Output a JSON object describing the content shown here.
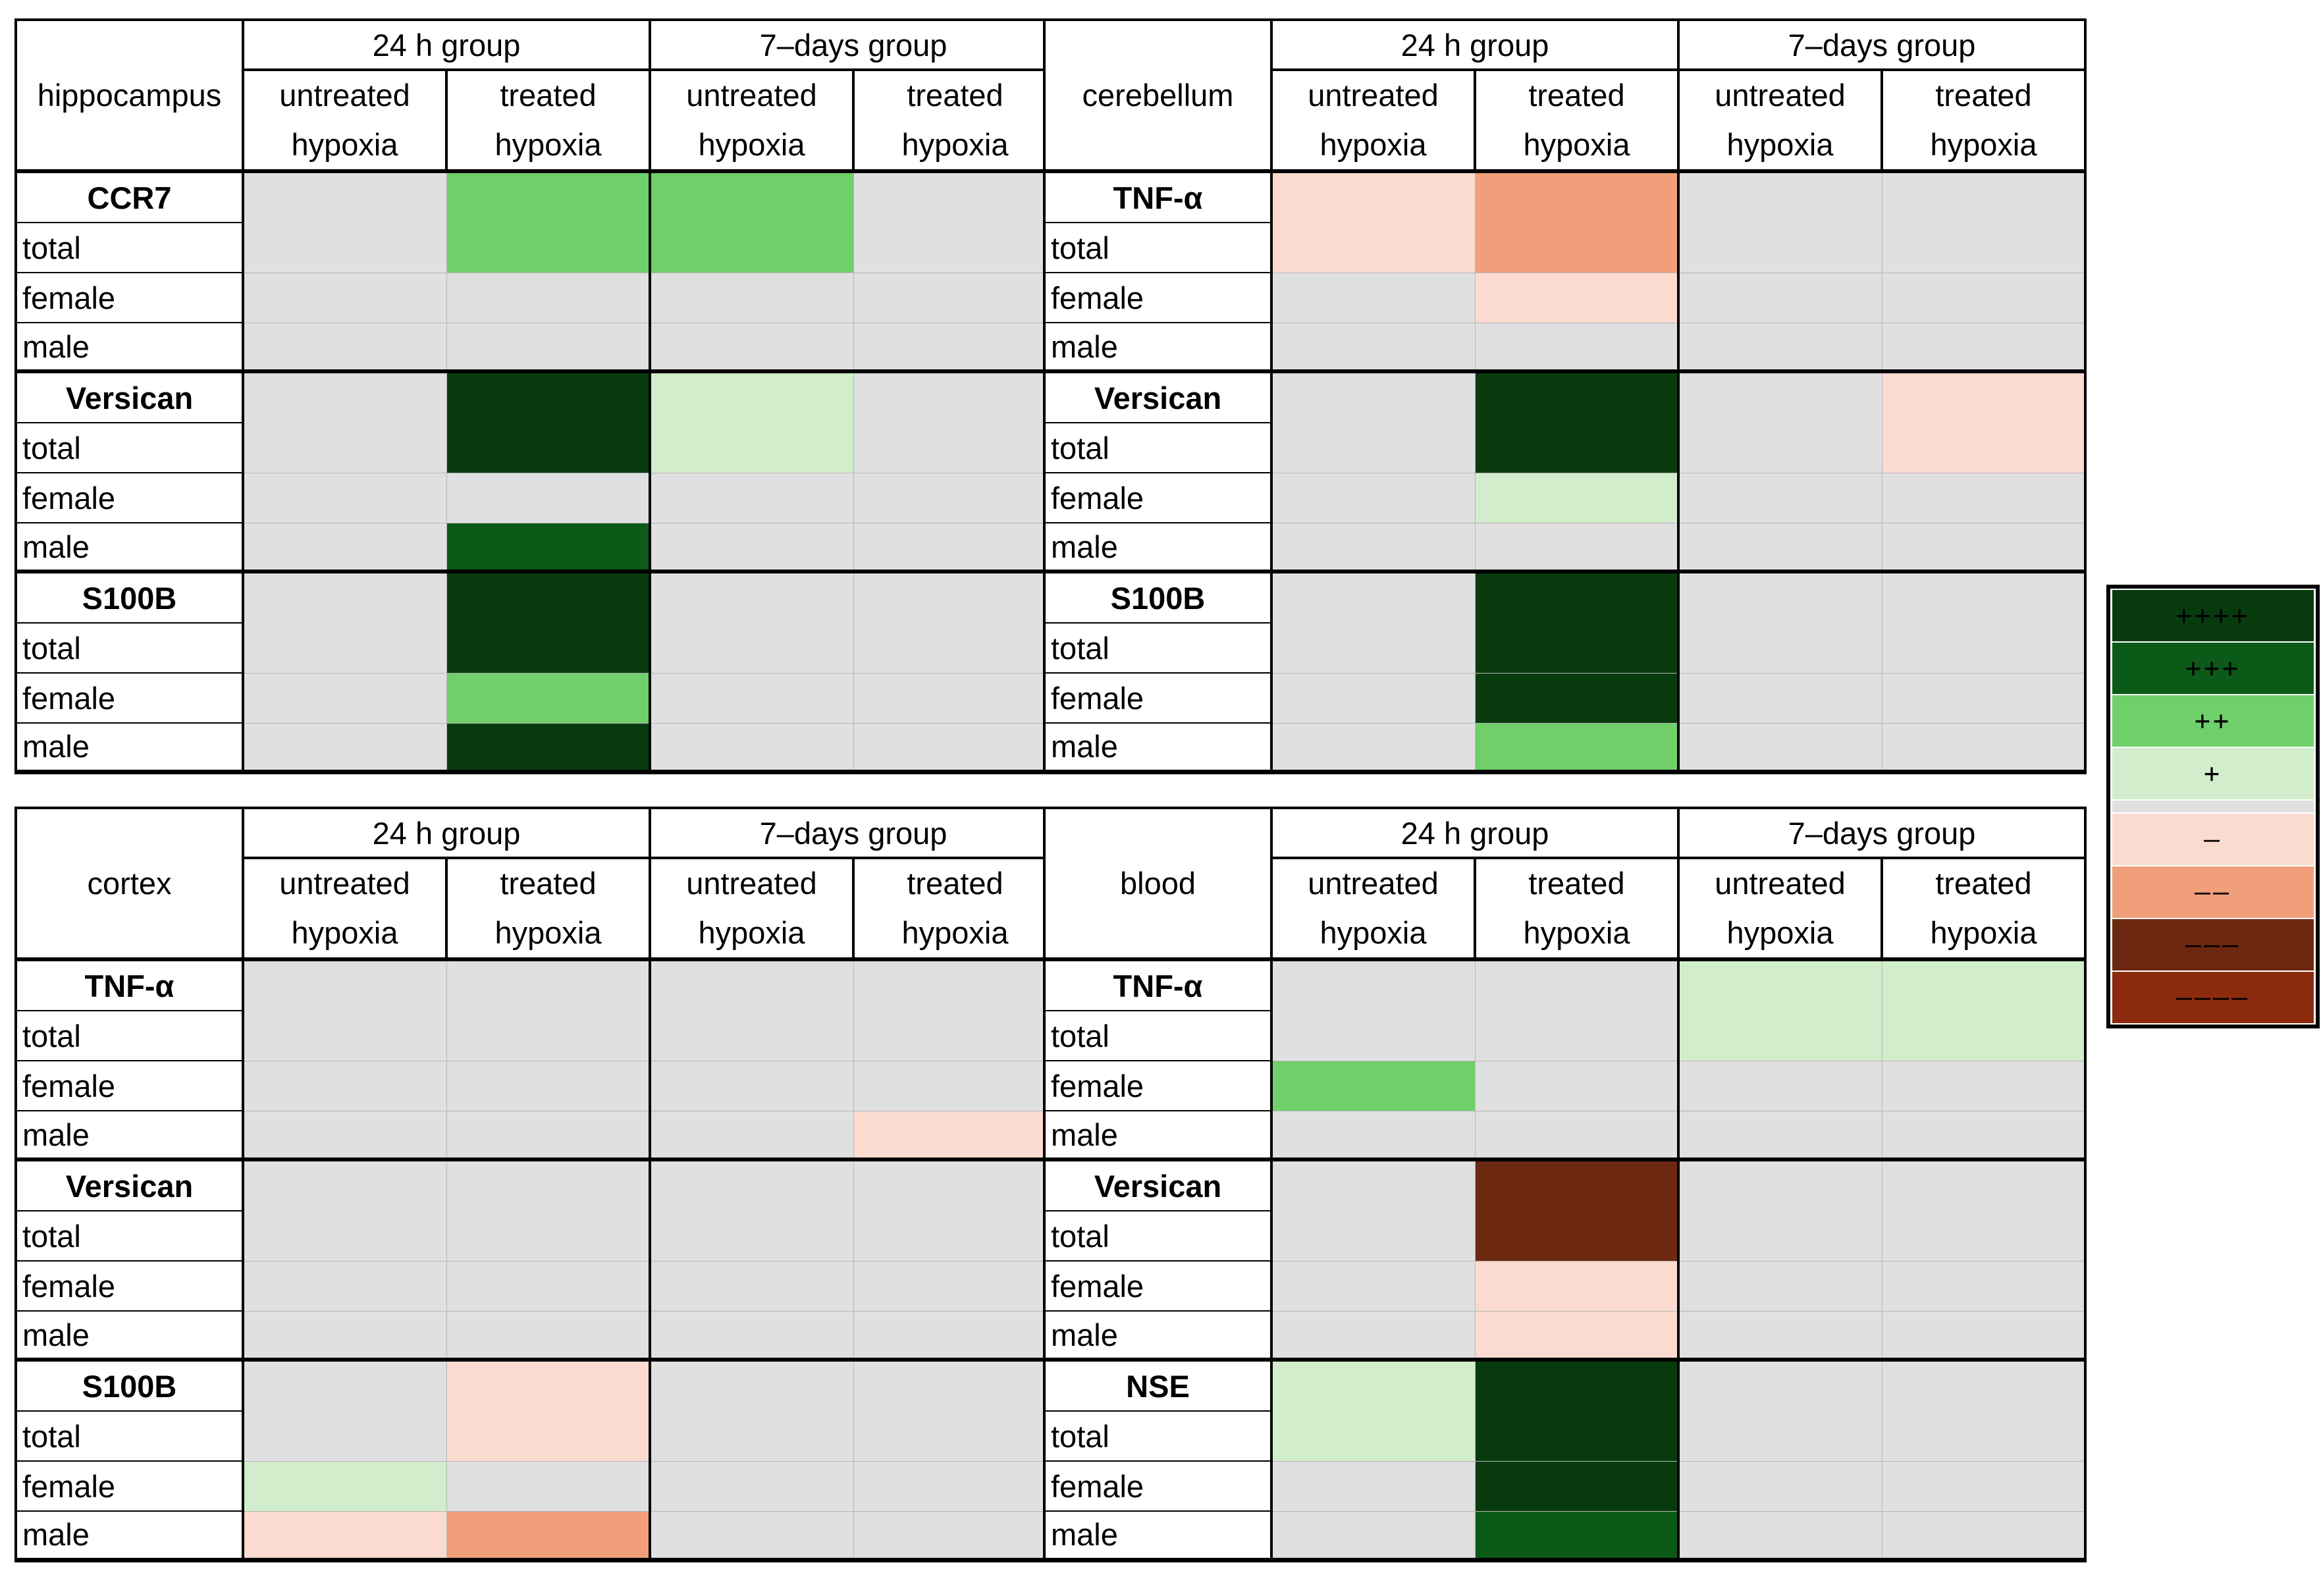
{
  "header": {
    "group_24h": "24 h group",
    "group_7d": "7–days group",
    "untreated": "untreated",
    "treated": "treated",
    "hypoxia": "hypoxia"
  },
  "row_labels": {
    "total": "total",
    "female": "female",
    "male": "male"
  },
  "scale": {
    "4": "#073b0e",
    "3": "#0b5a17",
    "2": "#6fd06a",
    "1": "#d2edcb",
    "0": "#e0e0e0",
    "-1": "#fbdbd0",
    "-2": "#f09f7a",
    "-3": "#6c2810",
    "-4": "#8c2a0e"
  },
  "legend": [
    {
      "symbol": "++++",
      "level": 4
    },
    {
      "symbol": "+++",
      "level": 3
    },
    {
      "symbol": "++",
      "level": 2
    },
    {
      "symbol": "+",
      "level": 1
    },
    {
      "symbol": "",
      "level": 0
    },
    {
      "symbol": "–",
      "level": -1
    },
    {
      "symbol": "––",
      "level": -2
    },
    {
      "symbol": "–––",
      "level": -3
    },
    {
      "symbol": "––––",
      "level": -4
    }
  ],
  "chart_data": {
    "type": "heatmap",
    "columns": [
      "24 h untreated hypoxia",
      "24 h treated hypoxia",
      "7-days untreated hypoxia",
      "7-days treated hypoxia"
    ],
    "panels": [
      {
        "region": "hippocampus",
        "markers": [
          {
            "name": "CCR7",
            "total": [
              0,
              2,
              2,
              0
            ],
            "female": [
              0,
              0,
              0,
              0
            ],
            "male": [
              0,
              0,
              0,
              0
            ]
          },
          {
            "name": "Versican",
            "total": [
              0,
              4,
              1,
              0
            ],
            "female": [
              0,
              0,
              0,
              0
            ],
            "male": [
              0,
              3,
              0,
              0
            ]
          },
          {
            "name": "S100B",
            "total": [
              0,
              4,
              0,
              0
            ],
            "female": [
              0,
              2,
              0,
              0
            ],
            "male": [
              0,
              4,
              0,
              0
            ]
          }
        ]
      },
      {
        "region": "cerebellum",
        "markers": [
          {
            "name": "TNF-α",
            "total": [
              -1,
              -2,
              0,
              0
            ],
            "female": [
              0,
              -1,
              0,
              0
            ],
            "male": [
              0,
              0,
              0,
              0
            ]
          },
          {
            "name": "Versican",
            "total": [
              0,
              4,
              0,
              -1
            ],
            "female": [
              0,
              1,
              0,
              0
            ],
            "male": [
              0,
              0,
              0,
              0
            ]
          },
          {
            "name": "S100B",
            "total": [
              0,
              4,
              0,
              0
            ],
            "female": [
              0,
              4,
              0,
              0
            ],
            "male": [
              0,
              2,
              0,
              0
            ]
          }
        ]
      },
      {
        "region": "cortex",
        "markers": [
          {
            "name": "TNF-α",
            "total": [
              0,
              0,
              0,
              0
            ],
            "female": [
              0,
              0,
              0,
              0
            ],
            "male": [
              0,
              0,
              0,
              -1
            ]
          },
          {
            "name": "Versican",
            "total": [
              0,
              0,
              0,
              0
            ],
            "female": [
              0,
              0,
              0,
              0
            ],
            "male": [
              0,
              0,
              0,
              0
            ]
          },
          {
            "name": "S100B",
            "total": [
              0,
              -1,
              0,
              0
            ],
            "female": [
              1,
              0,
              0,
              0
            ],
            "male": [
              -1,
              -2,
              0,
              0
            ]
          }
        ]
      },
      {
        "region": "blood",
        "markers": [
          {
            "name": "TNF-α",
            "total": [
              0,
              0,
              1,
              1
            ],
            "female": [
              2,
              0,
              0,
              0
            ],
            "male": [
              0,
              0,
              0,
              0
            ]
          },
          {
            "name": "Versican",
            "total": [
              0,
              -3,
              0,
              0
            ],
            "female": [
              0,
              -1,
              0,
              0
            ],
            "male": [
              0,
              -1,
              0,
              0
            ]
          },
          {
            "name": "NSE",
            "total": [
              1,
              4,
              0,
              0
            ],
            "female": [
              0,
              4,
              0,
              0
            ],
            "male": [
              0,
              3,
              0,
              0
            ]
          }
        ]
      }
    ]
  }
}
